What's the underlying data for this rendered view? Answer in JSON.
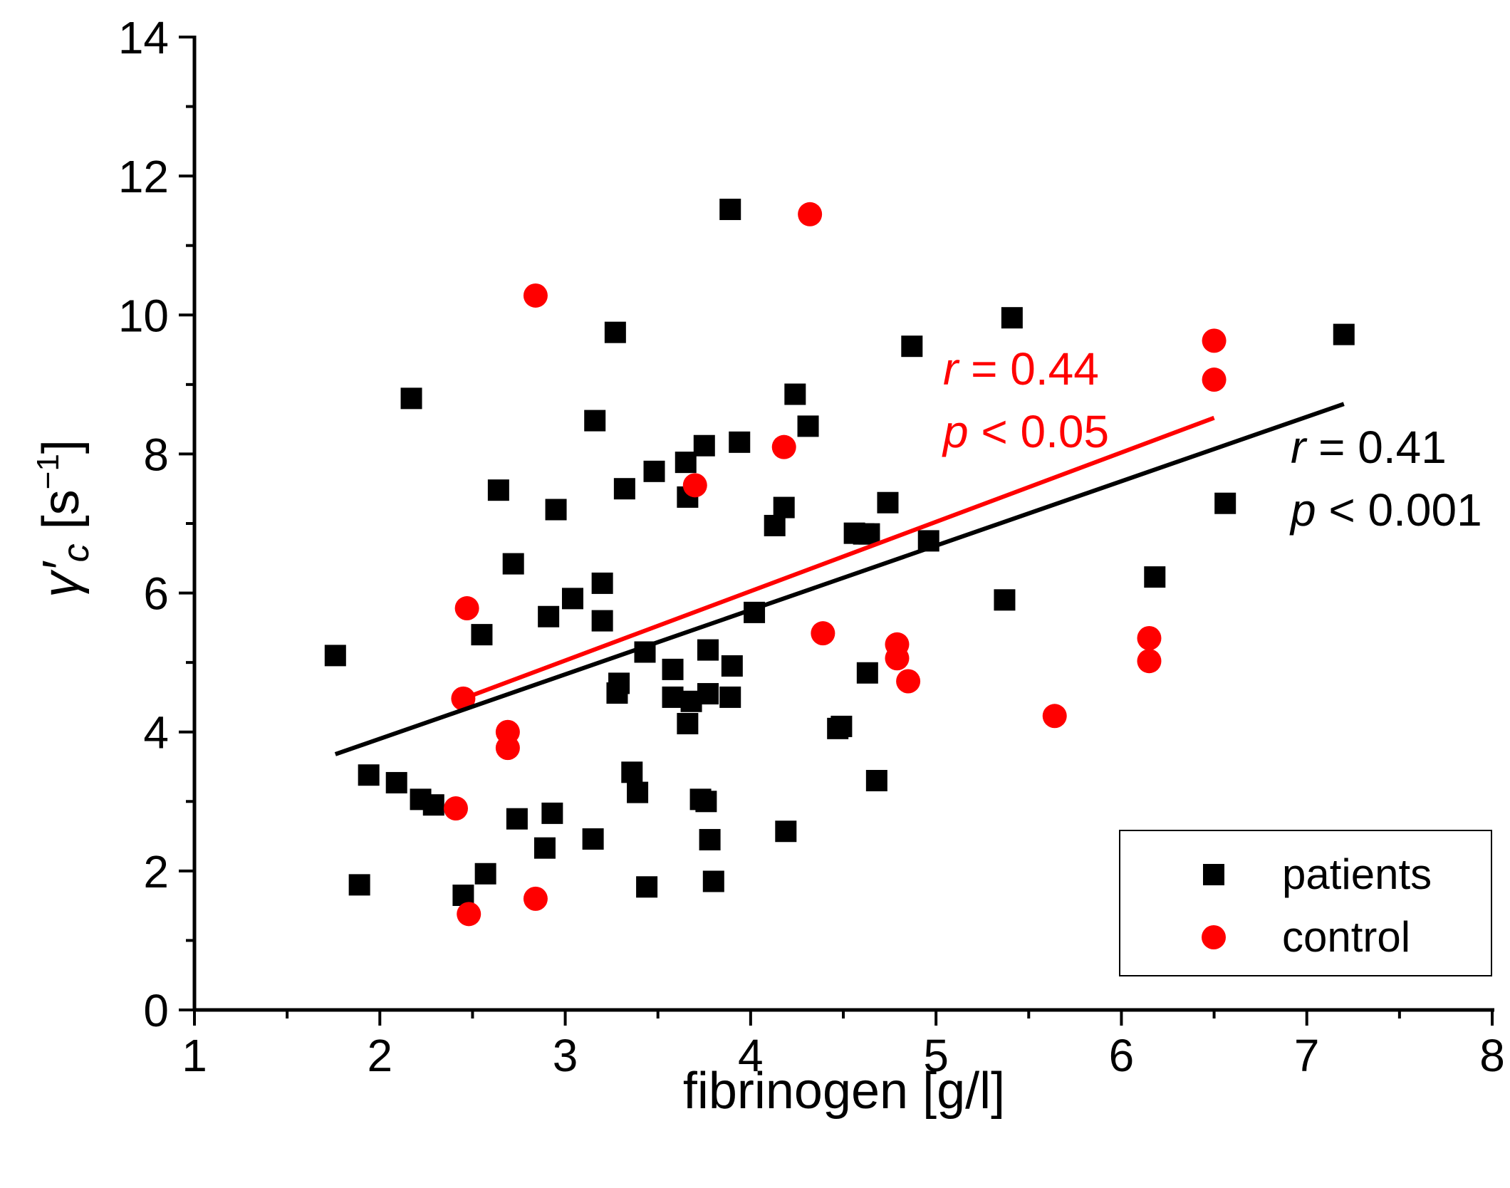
{
  "chart_data": {
    "type": "scatter",
    "title": "",
    "xlabel": "fibrinogen [g/l]",
    "ylabel": {
      "symbol": "γ′",
      "subscript": "c",
      "unit_open": " [s",
      "unit_sup": "−1",
      "unit_close": "]"
    },
    "xlim": [
      1,
      8
    ],
    "ylim": [
      0,
      14
    ],
    "x_ticks": [
      1,
      2,
      3,
      4,
      5,
      6,
      7,
      8
    ],
    "y_ticks": [
      0,
      2,
      4,
      6,
      8,
      10,
      12,
      14
    ],
    "legend_position": "bottom-right",
    "series": [
      {
        "name": "patients",
        "marker": "square",
        "color": "#000000",
        "points": [
          [
            1.76,
            5.1
          ],
          [
            1.89,
            1.8
          ],
          [
            1.94,
            3.38
          ],
          [
            2.09,
            3.27
          ],
          [
            2.17,
            8.8
          ],
          [
            2.22,
            3.03
          ],
          [
            2.29,
            2.95
          ],
          [
            2.45,
            1.65
          ],
          [
            2.55,
            5.4
          ],
          [
            2.57,
            1.96
          ],
          [
            2.64,
            7.48
          ],
          [
            2.72,
            6.42
          ],
          [
            2.74,
            2.75
          ],
          [
            2.89,
            2.33
          ],
          [
            2.91,
            5.66
          ],
          [
            2.93,
            2.83
          ],
          [
            2.95,
            7.2
          ],
          [
            3.04,
            5.92
          ],
          [
            3.15,
            2.46
          ],
          [
            3.16,
            8.48
          ],
          [
            3.2,
            6.14
          ],
          [
            3.2,
            5.6
          ],
          [
            3.27,
            9.75
          ],
          [
            3.28,
            4.56
          ],
          [
            3.29,
            4.7
          ],
          [
            3.32,
            7.5
          ],
          [
            3.36,
            3.42
          ],
          [
            3.39,
            3.13
          ],
          [
            3.43,
            5.15
          ],
          [
            3.44,
            1.77
          ],
          [
            3.48,
            7.75
          ],
          [
            3.58,
            4.9
          ],
          [
            3.58,
            4.5
          ],
          [
            3.65,
            7.88
          ],
          [
            3.66,
            4.12
          ],
          [
            3.66,
            7.38
          ],
          [
            3.68,
            4.44
          ],
          [
            3.73,
            3.03
          ],
          [
            3.75,
            8.12
          ],
          [
            3.76,
            3.0
          ],
          [
            3.77,
            4.55
          ],
          [
            3.77,
            5.18
          ],
          [
            3.78,
            2.45
          ],
          [
            3.8,
            1.85
          ],
          [
            3.89,
            11.52
          ],
          [
            3.89,
            4.5
          ],
          [
            3.9,
            4.95
          ],
          [
            3.94,
            8.17
          ],
          [
            4.02,
            5.72
          ],
          [
            4.13,
            6.97
          ],
          [
            4.18,
            7.23
          ],
          [
            4.19,
            2.57
          ],
          [
            4.24,
            8.86
          ],
          [
            4.31,
            8.4
          ],
          [
            4.47,
            4.05
          ],
          [
            4.49,
            4.08
          ],
          [
            4.56,
            6.86
          ],
          [
            4.61,
            6.85
          ],
          [
            4.63,
            4.85
          ],
          [
            4.64,
            6.85
          ],
          [
            4.68,
            3.3
          ],
          [
            4.74,
            7.3
          ],
          [
            4.87,
            9.55
          ],
          [
            4.96,
            6.75
          ],
          [
            5.37,
            5.9
          ],
          [
            5.41,
            9.96
          ],
          [
            6.18,
            6.23
          ],
          [
            6.56,
            7.29
          ],
          [
            7.2,
            9.72
          ]
        ]
      },
      {
        "name": "control",
        "marker": "circle",
        "color": "#ff0000",
        "points": [
          [
            2.41,
            2.9
          ],
          [
            2.45,
            4.48
          ],
          [
            2.47,
            5.78
          ],
          [
            2.48,
            1.38
          ],
          [
            2.69,
            4.0
          ],
          [
            2.69,
            3.77
          ],
          [
            2.84,
            10.28
          ],
          [
            2.84,
            1.6
          ],
          [
            3.7,
            7.55
          ],
          [
            4.18,
            8.1
          ],
          [
            4.32,
            11.45
          ],
          [
            4.39,
            5.42
          ],
          [
            4.79,
            5.26
          ],
          [
            4.79,
            5.06
          ],
          [
            4.85,
            4.73
          ],
          [
            5.64,
            4.23
          ],
          [
            6.15,
            5.35
          ],
          [
            6.15,
            5.02
          ],
          [
            6.5,
            9.63
          ],
          [
            6.5,
            9.07
          ]
        ]
      }
    ],
    "fits": [
      {
        "series": "patients",
        "color": "#000000",
        "x": [
          1.76,
          7.2
        ],
        "y": [
          3.68,
          8.72
        ],
        "r_value": " = 0.41",
        "p_value": " < 0.001"
      },
      {
        "series": "control",
        "color": "#ff0000",
        "x": [
          2.45,
          6.5
        ],
        "y": [
          4.48,
          8.52
        ],
        "r_value": " = 0.44",
        "p_value": " < 0.05"
      }
    ],
    "stat_symbols": {
      "r": "r",
      "p": "p"
    }
  }
}
